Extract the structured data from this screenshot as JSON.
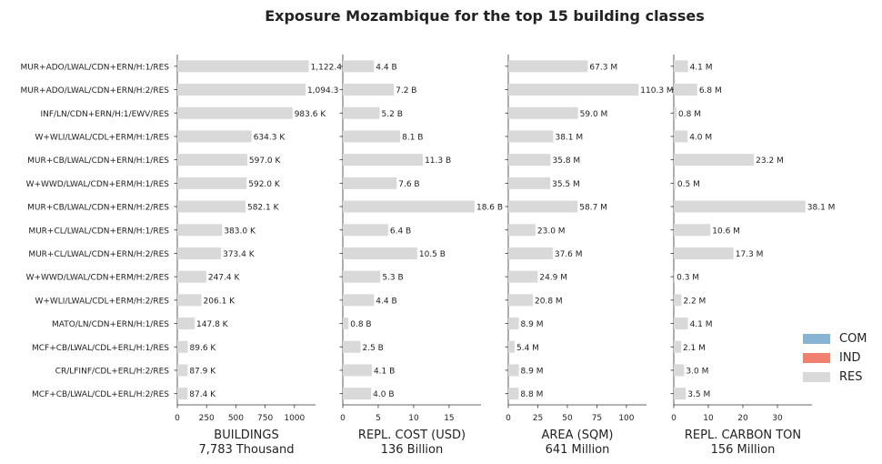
{
  "chart_data": {
    "type": "bar",
    "orientation": "horizontal",
    "title": "Exposure Mozambique for the top 15 building classes",
    "categories": [
      "MUR+ADO/LWAL/CDN+ERN/H:1/RES",
      "MUR+ADO/LWAL/CDN+ERN/H:2/RES",
      "INF/LN/CDN+ERN/H:1/EWV/RES",
      "W+WLI/LWAL/CDL+ERM/H:1/RES",
      "MUR+CB/LWAL/CDN+ERN/H:1/RES",
      "W+WWD/LWAL/CDN+ERM/H:1/RES",
      "MUR+CB/LWAL/CDN+ERN/H:2/RES",
      "MUR+CL/LWAL/CDN+ERN/H:1/RES",
      "MUR+CL/LWAL/CDN+ERN/H:2/RES",
      "W+WWD/LWAL/CDN+ERM/H:2/RES",
      "W+WLI/LWAL/CDL+ERM/H:2/RES",
      "MATO/LN/CDN+ERN/H:1/RES",
      "MCF+CB/LWAL/CDL+ERL/H:1/RES",
      "CR/LFINF/CDL+ERL/H:2/RES",
      "MCF+CB/LWAL/CDL+ERL/H:2/RES"
    ],
    "panels": [
      {
        "xlabel": "BUILDINGS",
        "total": "7,783 Thousand",
        "xlim": [
          0,
          1180
        ],
        "ticks": [
          0,
          250,
          500,
          750,
          1000
        ],
        "tick_labels": [
          "0",
          "250",
          "500",
          "750",
          "1000"
        ],
        "values": [
          1122.4,
          1094.3,
          983.6,
          634.3,
          597.0,
          592.0,
          582.1,
          383.0,
          373.4,
          247.4,
          206.1,
          147.8,
          89.6,
          87.9,
          87.4
        ],
        "labels": [
          "1,122.4",
          "1,094.3",
          "983.6 K",
          "634.3 K",
          "597.0 K",
          "592.0 K",
          "582.1 K",
          "383.0 K",
          "373.4 K",
          "247.4 K",
          "206.1 K",
          "147.8 K",
          "89.6 K",
          "87.9 K",
          "87.4 K"
        ]
      },
      {
        "xlabel": "REPL. COST (USD)",
        "total": "136 Billion",
        "xlim": [
          0,
          19.5
        ],
        "ticks": [
          0,
          5,
          10,
          15
        ],
        "tick_labels": [
          "0",
          "5",
          "10",
          "15"
        ],
        "values": [
          4.4,
          7.2,
          5.2,
          8.1,
          11.3,
          7.6,
          18.6,
          6.4,
          10.5,
          5.3,
          4.4,
          0.8,
          2.5,
          4.1,
          4.0
        ],
        "labels": [
          "4.4 B",
          "7.2 B",
          "5.2 B",
          "8.1 B",
          "11.3 B",
          "7.6 B",
          "18.6 B",
          "6.4 B",
          "10.5 B",
          "5.3 B",
          "4.4 B",
          "0.8 B",
          "2.5 B",
          "4.1 B",
          "4.0 B"
        ]
      },
      {
        "xlabel": "AREA (SQM)",
        "total": "641 Million",
        "xlim": [
          0,
          117
        ],
        "ticks": [
          0,
          25,
          50,
          75,
          100
        ],
        "tick_labels": [
          "0",
          "25",
          "50",
          "75",
          "100"
        ],
        "values": [
          67.3,
          110.3,
          59.0,
          38.1,
          35.8,
          35.5,
          58.7,
          23.0,
          37.6,
          24.9,
          20.8,
          8.9,
          5.4,
          8.9,
          8.8
        ],
        "labels": [
          "67.3 M",
          "110.3 M",
          "59.0 M",
          "38.1 M",
          "35.8 M",
          "35.5 M",
          "58.7 M",
          "23.0 M",
          "37.6 M",
          "24.9 M",
          "20.8 M",
          "8.9 M",
          "5.4 M",
          "8.9 M",
          "8.8 M"
        ]
      },
      {
        "xlabel": "REPL. CARBON TON",
        "total": "156 Million",
        "xlim": [
          0,
          40
        ],
        "ticks": [
          0,
          10,
          20,
          30
        ],
        "tick_labels": [
          "0",
          "10",
          "20",
          "30"
        ],
        "values": [
          4.1,
          6.8,
          0.8,
          4.0,
          23.2,
          0.5,
          38.1,
          10.6,
          17.3,
          0.3,
          2.2,
          4.1,
          2.1,
          3.0,
          3.5
        ],
        "labels": [
          "4.1 M",
          "6.8 M",
          "0.8 M",
          "4.0 M",
          "23.2 M",
          "0.5 M",
          "38.1 M",
          "10.6 M",
          "17.3 M",
          "0.3 M",
          "2.2 M",
          "4.1 M",
          "2.1 M",
          "3.0 M",
          "3.5 M"
        ]
      }
    ],
    "legend": {
      "placement": "right",
      "entries": [
        {
          "name": "COM",
          "color": "#86b4d2"
        },
        {
          "name": "IND",
          "color": "#f08070"
        },
        {
          "name": "RES",
          "color": "#d9d9d9"
        }
      ]
    },
    "bar_color": "#d9d9d9",
    "grid": false
  }
}
